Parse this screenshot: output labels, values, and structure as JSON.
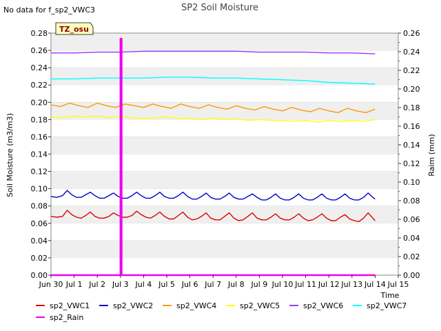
{
  "chart_data": {
    "type": "line",
    "title": "SP2 Soil Moisture",
    "note": "No data for f_sp2_VWC3",
    "site_tag": "TZ_osu",
    "xlabel": "Time",
    "ylabel": "Soil Moisture (m3/m3)",
    "y2label": "Raim (mm)",
    "xlim": [
      0,
      15
    ],
    "ylim": [
      0,
      0.28
    ],
    "y2lim": [
      0,
      0.26
    ],
    "x_tick_labels": [
      "Jun 30",
      "Jul 1",
      "Jul 2",
      "Jul 3",
      "Jul 4",
      "Jul 5",
      "Jul 6",
      "Jul 7",
      "Jul 8",
      "Jul 9",
      "Jul 10",
      "Jul 11",
      "Jul 12",
      "Jul 13",
      "Jul 14",
      "Jul 15"
    ],
    "y_ticks": [
      0.0,
      0.02,
      0.04,
      0.06,
      0.08,
      0.1,
      0.12,
      0.14,
      0.16,
      0.18,
      0.2,
      0.22,
      0.24,
      0.26,
      0.28
    ],
    "y_tick_labels": [
      "0.00",
      "0.02",
      "0.04",
      "0.06",
      "0.08",
      "0.10",
      "0.12",
      "0.14",
      "0.16",
      "0.18",
      "0.20",
      "0.22",
      "0.24",
      "0.26",
      "0.28"
    ],
    "y2_ticks": [
      0.0,
      0.02,
      0.04,
      0.06,
      0.08,
      0.1,
      0.12,
      0.14,
      0.16,
      0.18,
      0.2,
      0.22,
      0.24,
      0.26
    ],
    "y2_tick_labels": [
      "0.00",
      "0.02",
      "0.04",
      "0.06",
      "0.08",
      "0.10",
      "0.12",
      "0.14",
      "0.16",
      "0.18",
      "0.20",
      "0.22",
      "0.24",
      "0.26"
    ],
    "grid": "horizontal bands",
    "legend_position": "bottom",
    "series": [
      {
        "name": "sp2_VWC1",
        "color": "#dd0000",
        "axis": "left",
        "x": [
          0.0,
          0.25,
          0.5,
          0.7,
          0.9,
          1.1,
          1.3,
          1.5,
          1.7,
          1.9,
          2.1,
          2.3,
          2.5,
          2.7,
          2.9,
          3.1,
          3.3,
          3.5,
          3.7,
          3.9,
          4.1,
          4.3,
          4.5,
          4.7,
          4.9,
          5.1,
          5.3,
          5.5,
          5.7,
          5.9,
          6.1,
          6.3,
          6.5,
          6.7,
          6.9,
          7.1,
          7.3,
          7.5,
          7.7,
          7.9,
          8.1,
          8.3,
          8.5,
          8.7,
          8.9,
          9.1,
          9.3,
          9.5,
          9.7,
          9.9,
          10.1,
          10.3,
          10.5,
          10.7,
          10.9,
          11.1,
          11.3,
          11.5,
          11.7,
          11.9,
          12.1,
          12.3,
          12.5,
          12.7,
          12.9,
          13.1,
          13.3,
          13.5,
          13.7,
          13.9,
          14.0
        ],
        "y": [
          0.068,
          0.067,
          0.068,
          0.075,
          0.07,
          0.067,
          0.066,
          0.069,
          0.073,
          0.068,
          0.066,
          0.066,
          0.068,
          0.072,
          0.069,
          0.067,
          0.067,
          0.069,
          0.074,
          0.07,
          0.067,
          0.066,
          0.069,
          0.073,
          0.068,
          0.065,
          0.065,
          0.069,
          0.073,
          0.067,
          0.064,
          0.065,
          0.068,
          0.072,
          0.066,
          0.064,
          0.064,
          0.068,
          0.072,
          0.066,
          0.063,
          0.064,
          0.068,
          0.072,
          0.066,
          0.064,
          0.064,
          0.067,
          0.071,
          0.066,
          0.064,
          0.064,
          0.067,
          0.071,
          0.066,
          0.063,
          0.064,
          0.067,
          0.071,
          0.066,
          0.063,
          0.063,
          0.067,
          0.07,
          0.065,
          0.063,
          0.062,
          0.066,
          0.072,
          0.066,
          0.063
        ]
      },
      {
        "name": "sp2_VWC2",
        "color": "#0000cc",
        "axis": "left",
        "x": [
          0.0,
          0.25,
          0.5,
          0.7,
          0.9,
          1.1,
          1.3,
          1.5,
          1.7,
          1.9,
          2.1,
          2.3,
          2.5,
          2.7,
          2.9,
          3.1,
          3.3,
          3.5,
          3.7,
          3.9,
          4.1,
          4.3,
          4.5,
          4.7,
          4.9,
          5.1,
          5.3,
          5.5,
          5.7,
          5.9,
          6.1,
          6.3,
          6.5,
          6.7,
          6.9,
          7.1,
          7.3,
          7.5,
          7.7,
          7.9,
          8.1,
          8.3,
          8.5,
          8.7,
          8.9,
          9.1,
          9.3,
          9.5,
          9.7,
          9.9,
          10.1,
          10.3,
          10.5,
          10.7,
          10.9,
          11.1,
          11.3,
          11.5,
          11.7,
          11.9,
          12.1,
          12.3,
          12.5,
          12.7,
          12.9,
          13.1,
          13.3,
          13.5,
          13.7,
          13.9,
          14.0
        ],
        "y": [
          0.091,
          0.09,
          0.092,
          0.098,
          0.093,
          0.09,
          0.09,
          0.093,
          0.096,
          0.092,
          0.089,
          0.089,
          0.092,
          0.095,
          0.091,
          0.089,
          0.089,
          0.092,
          0.096,
          0.092,
          0.089,
          0.089,
          0.092,
          0.096,
          0.091,
          0.089,
          0.089,
          0.092,
          0.096,
          0.091,
          0.088,
          0.088,
          0.091,
          0.095,
          0.09,
          0.088,
          0.088,
          0.091,
          0.095,
          0.09,
          0.088,
          0.088,
          0.091,
          0.094,
          0.09,
          0.087,
          0.087,
          0.09,
          0.094,
          0.089,
          0.087,
          0.087,
          0.09,
          0.094,
          0.089,
          0.087,
          0.087,
          0.09,
          0.094,
          0.089,
          0.087,
          0.087,
          0.09,
          0.094,
          0.089,
          0.087,
          0.087,
          0.09,
          0.095,
          0.09,
          0.088
        ]
      },
      {
        "name": "sp2_VWC4",
        "color": "#ff9900",
        "axis": "left",
        "x": [
          0.0,
          0.4,
          0.8,
          1.2,
          1.6,
          2.0,
          2.4,
          2.8,
          3.2,
          3.6,
          4.0,
          4.4,
          4.8,
          5.2,
          5.6,
          6.0,
          6.4,
          6.8,
          7.2,
          7.6,
          8.0,
          8.4,
          8.8,
          9.2,
          9.6,
          10.0,
          10.4,
          10.8,
          11.2,
          11.6,
          12.0,
          12.4,
          12.8,
          13.2,
          13.6,
          14.0
        ],
        "y": [
          0.197,
          0.195,
          0.199,
          0.196,
          0.194,
          0.199,
          0.196,
          0.194,
          0.198,
          0.196,
          0.194,
          0.198,
          0.195,
          0.193,
          0.198,
          0.195,
          0.193,
          0.197,
          0.194,
          0.192,
          0.196,
          0.193,
          0.191,
          0.195,
          0.192,
          0.19,
          0.194,
          0.191,
          0.189,
          0.193,
          0.19,
          0.188,
          0.193,
          0.19,
          0.188,
          0.192
        ]
      },
      {
        "name": "sp2_VWC5",
        "color": "#ffff00",
        "axis": "left",
        "x": [
          0.0,
          0.5,
          1.0,
          1.5,
          2.0,
          2.5,
          3.0,
          3.5,
          4.0,
          4.5,
          5.0,
          5.5,
          6.0,
          6.5,
          7.0,
          7.5,
          8.0,
          8.5,
          9.0,
          9.5,
          10.0,
          10.5,
          11.0,
          11.5,
          12.0,
          12.5,
          13.0,
          13.5,
          14.0
        ],
        "y": [
          0.183,
          0.182,
          0.184,
          0.183,
          0.184,
          0.182,
          0.184,
          0.182,
          0.181,
          0.182,
          0.183,
          0.181,
          0.182,
          0.18,
          0.182,
          0.18,
          0.181,
          0.179,
          0.18,
          0.179,
          0.179,
          0.178,
          0.179,
          0.177,
          0.179,
          0.178,
          0.179,
          0.178,
          0.18
        ]
      },
      {
        "name": "sp2_VWC6",
        "color": "#9933ff",
        "axis": "left",
        "x": [
          0.0,
          1.0,
          2.0,
          3.0,
          4.0,
          5.0,
          6.0,
          7.0,
          8.0,
          9.0,
          10.0,
          11.0,
          12.0,
          13.0,
          14.0
        ],
        "y": [
          0.257,
          0.257,
          0.258,
          0.258,
          0.259,
          0.259,
          0.259,
          0.259,
          0.259,
          0.258,
          0.258,
          0.258,
          0.257,
          0.257,
          0.256
        ]
      },
      {
        "name": "sp2_VWC7",
        "color": "#00ffff",
        "axis": "left",
        "x": [
          0.0,
          1.0,
          2.0,
          3.0,
          4.0,
          5.0,
          6.0,
          7.0,
          8.0,
          9.0,
          10.0,
          11.0,
          12.0,
          13.0,
          14.0
        ],
        "y": [
          0.227,
          0.227,
          0.228,
          0.228,
          0.228,
          0.229,
          0.229,
          0.228,
          0.228,
          0.227,
          0.226,
          0.225,
          0.223,
          0.222,
          0.221
        ]
      },
      {
        "name": "sp2_Rain",
        "color": "#ee00ee",
        "axis": "right",
        "x": [
          0.0,
          3.0,
          3.0,
          3.05,
          3.05,
          14.0
        ],
        "y": [
          0.0,
          0.0,
          0.254,
          0.254,
          0.0,
          0.0
        ]
      }
    ]
  }
}
